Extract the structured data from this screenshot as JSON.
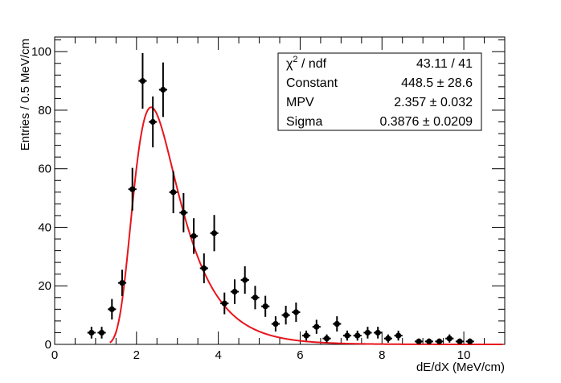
{
  "chart_data": {
    "type": "scatter",
    "xlabel": "dE/dX (MeV/cm)",
    "ylabel": "Entries / 0.5 MeV/cm",
    "xlim": [
      0,
      11
    ],
    "ylim": [
      0,
      105
    ],
    "x_ticks": [
      0,
      2,
      4,
      6,
      8,
      10
    ],
    "y_ticks": [
      0,
      20,
      40,
      60,
      80,
      100
    ],
    "bin_half_width": 0.1,
    "points": [
      {
        "x": 0.9,
        "y": 4,
        "err": 2
      },
      {
        "x": 1.15,
        "y": 4,
        "err": 2
      },
      {
        "x": 1.4,
        "y": 12,
        "err": 3.5
      },
      {
        "x": 1.65,
        "y": 21,
        "err": 4.5
      },
      {
        "x": 1.9,
        "y": 53,
        "err": 7.3
      },
      {
        "x": 2.15,
        "y": 90,
        "err": 9.5
      },
      {
        "x": 2.4,
        "y": 76,
        "err": 8.7
      },
      {
        "x": 2.65,
        "y": 87,
        "err": 9.3
      },
      {
        "x": 2.9,
        "y": 52,
        "err": 7.2
      },
      {
        "x": 3.15,
        "y": 45,
        "err": 6.7
      },
      {
        "x": 3.4,
        "y": 37,
        "err": 6.1
      },
      {
        "x": 3.65,
        "y": 26,
        "err": 5.1
      },
      {
        "x": 3.9,
        "y": 38,
        "err": 6.2
      },
      {
        "x": 4.15,
        "y": 14,
        "err": 3.7
      },
      {
        "x": 4.4,
        "y": 18,
        "err": 4.2
      },
      {
        "x": 4.65,
        "y": 22,
        "err": 4.7
      },
      {
        "x": 4.9,
        "y": 16,
        "err": 4
      },
      {
        "x": 5.15,
        "y": 13,
        "err": 3.6
      },
      {
        "x": 5.4,
        "y": 7,
        "err": 2.6
      },
      {
        "x": 5.65,
        "y": 10,
        "err": 3.2
      },
      {
        "x": 5.9,
        "y": 11,
        "err": 3.3
      },
      {
        "x": 6.15,
        "y": 3,
        "err": 1.7
      },
      {
        "x": 6.4,
        "y": 6,
        "err": 2.4
      },
      {
        "x": 6.65,
        "y": 2,
        "err": 1.4
      },
      {
        "x": 6.9,
        "y": 7,
        "err": 2.6
      },
      {
        "x": 7.15,
        "y": 3,
        "err": 1.7
      },
      {
        "x": 7.4,
        "y": 3,
        "err": 1.7
      },
      {
        "x": 7.65,
        "y": 4,
        "err": 2
      },
      {
        "x": 7.9,
        "y": 4,
        "err": 2
      },
      {
        "x": 8.15,
        "y": 2,
        "err": 1.4
      },
      {
        "x": 8.4,
        "y": 3,
        "err": 1.7
      },
      {
        "x": 8.9,
        "y": 1,
        "err": 1
      },
      {
        "x": 9.15,
        "y": 1,
        "err": 1
      },
      {
        "x": 9.4,
        "y": 1,
        "err": 1
      },
      {
        "x": 9.65,
        "y": 2,
        "err": 1.4
      },
      {
        "x": 9.9,
        "y": 1,
        "err": 1
      },
      {
        "x": 10.15,
        "y": 1,
        "err": 1
      }
    ],
    "fit": {
      "function": "landau",
      "constant": 448.5,
      "mpv": 2.357,
      "sigma": 0.3876,
      "x_start": 1.35,
      "x_end": 10.95,
      "color": "#e8141b"
    },
    "stats_box": {
      "rows": [
        {
          "label_main": "χ",
          "label_sup": "2",
          "label_rest": " / ndf",
          "value": "43.11 / 41"
        },
        {
          "label": "Constant",
          "value": "448.5 ± 28.6"
        },
        {
          "label": "MPV",
          "value": "2.357 ± 0.032"
        },
        {
          "label": "Sigma",
          "value": "0.3876 ± 0.0209"
        }
      ]
    }
  }
}
